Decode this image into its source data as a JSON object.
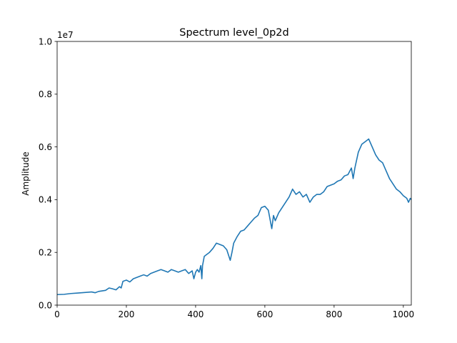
{
  "chart_data": {
    "type": "line",
    "title": "Spectrum level_0p2d",
    "xlabel": "",
    "ylabel": "Amplitude",
    "y_multiplier_label": "1e7",
    "xlim": [
      0,
      1023
    ],
    "ylim": [
      0,
      10000000
    ],
    "x_ticks": [
      0,
      200,
      400,
      600,
      800,
      1000
    ],
    "x_tick_labels": [
      "0",
      "200",
      "400",
      "600",
      "800",
      "1000"
    ],
    "y_ticks": [
      0,
      2000000,
      4000000,
      6000000,
      8000000,
      10000000
    ],
    "y_tick_labels": [
      "0.0",
      "0.2",
      "0.4",
      "0.6",
      "0.8",
      "1.0"
    ],
    "grid": false,
    "legend": "none",
    "colors": {
      "line": "#1f77b4"
    },
    "series": [
      {
        "x": [
          0,
          20,
          40,
          60,
          80,
          100,
          110,
          120,
          130,
          140,
          150,
          160,
          170,
          180,
          185,
          190,
          200,
          210,
          220,
          230,
          240,
          250,
          260,
          270,
          280,
          290,
          300,
          310,
          320,
          330,
          340,
          350,
          360,
          370,
          380,
          390,
          395,
          400,
          405,
          410,
          415,
          418,
          420,
          425,
          430,
          440,
          450,
          460,
          470,
          480,
          490,
          500,
          505,
          510,
          520,
          530,
          540,
          550,
          560,
          570,
          580,
          590,
          600,
          610,
          620,
          625,
          630,
          640,
          650,
          660,
          670,
          680,
          690,
          700,
          710,
          720,
          730,
          740,
          750,
          760,
          770,
          780,
          790,
          800,
          810,
          820,
          830,
          840,
          850,
          855,
          860,
          870,
          880,
          890,
          900,
          910,
          920,
          930,
          940,
          950,
          960,
          970,
          980,
          990,
          1000,
          1010,
          1015,
          1020,
          1023
        ],
        "y": [
          400000,
          410000,
          440000,
          460000,
          480000,
          500000,
          470000,
          520000,
          540000,
          560000,
          650000,
          620000,
          580000,
          700000,
          650000,
          900000,
          950000,
          880000,
          1000000,
          1050000,
          1100000,
          1150000,
          1100000,
          1200000,
          1250000,
          1300000,
          1350000,
          1300000,
          1250000,
          1350000,
          1300000,
          1250000,
          1300000,
          1350000,
          1200000,
          1300000,
          1000000,
          1250000,
          1350000,
          1250000,
          1500000,
          1000000,
          1500000,
          1850000,
          1900000,
          2000000,
          2150000,
          2350000,
          2300000,
          2250000,
          2100000,
          1700000,
          2000000,
          2350000,
          2600000,
          2800000,
          2850000,
          3000000,
          3150000,
          3300000,
          3400000,
          3700000,
          3750000,
          3600000,
          2900000,
          3400000,
          3200000,
          3500000,
          3700000,
          3900000,
          4100000,
          4400000,
          4200000,
          4300000,
          4100000,
          4200000,
          3900000,
          4100000,
          4200000,
          4200000,
          4300000,
          4500000,
          4550000,
          4600000,
          4700000,
          4750000,
          4900000,
          4950000,
          5200000,
          4800000,
          5200000,
          5800000,
          6100000,
          6200000,
          6300000,
          6000000,
          5700000,
          5500000,
          5400000,
          5100000,
          4800000,
          4600000,
          4400000,
          4300000,
          4150000,
          4050000,
          3900000,
          4050000,
          4000000
        ]
      }
    ]
  }
}
